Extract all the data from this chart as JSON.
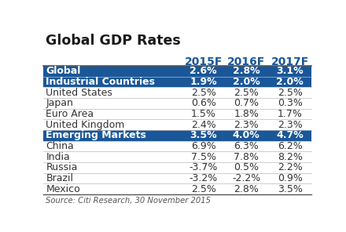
{
  "title": "Global GDP Rates",
  "columns": [
    "",
    "2015F",
    "2016F",
    "2017F"
  ],
  "rows": [
    {
      "label": "Global",
      "values": [
        "2.6%",
        "2.8%",
        "3.1%"
      ],
      "type": "header"
    },
    {
      "label": "Industrial Countries",
      "values": [
        "1.9%",
        "2.0%",
        "2.0%"
      ],
      "type": "header"
    },
    {
      "label": "United States",
      "values": [
        "2.5%",
        "2.5%",
        "2.5%"
      ],
      "type": "normal"
    },
    {
      "label": "Japan",
      "values": [
        "0.6%",
        "0.7%",
        "0.3%"
      ],
      "type": "normal"
    },
    {
      "label": "Euro Area",
      "values": [
        "1.5%",
        "1.8%",
        "1.7%"
      ],
      "type": "normal"
    },
    {
      "label": "United Kingdom",
      "values": [
        "2.4%",
        "2.3%",
        "2.3%"
      ],
      "type": "normal"
    },
    {
      "label": "Emerging Markets",
      "values": [
        "3.5%",
        "4.0%",
        "4.7%"
      ],
      "type": "header"
    },
    {
      "label": "China",
      "values": [
        "6.9%",
        "6.3%",
        "6.2%"
      ],
      "type": "normal"
    },
    {
      "label": "India",
      "values": [
        "7.5%",
        "7.8%",
        "8.2%"
      ],
      "type": "normal"
    },
    {
      "label": "Russia",
      "values": [
        "-3.7%",
        "0.5%",
        "2.2%"
      ],
      "type": "normal"
    },
    {
      "label": "Brazil",
      "values": [
        "-3.2%",
        "-2.2%",
        "0.9%"
      ],
      "type": "normal"
    },
    {
      "label": "Mexico",
      "values": [
        "2.5%",
        "2.8%",
        "3.5%"
      ],
      "type": "normal"
    }
  ],
  "footer": "Source: Citi Research, 30 November 2015",
  "header_bg": "#1a5799",
  "header_text": "#ffffff",
  "normal_bg": "#ffffff",
  "normal_text": "#333333",
  "title_color": "#1a1a1a",
  "col_header_color": "#1a5799",
  "border_color": "#bbbbbb",
  "title_fontsize": 12.5,
  "col_header_fontsize": 10,
  "row_fontsize": 9,
  "footer_fontsize": 7.2
}
